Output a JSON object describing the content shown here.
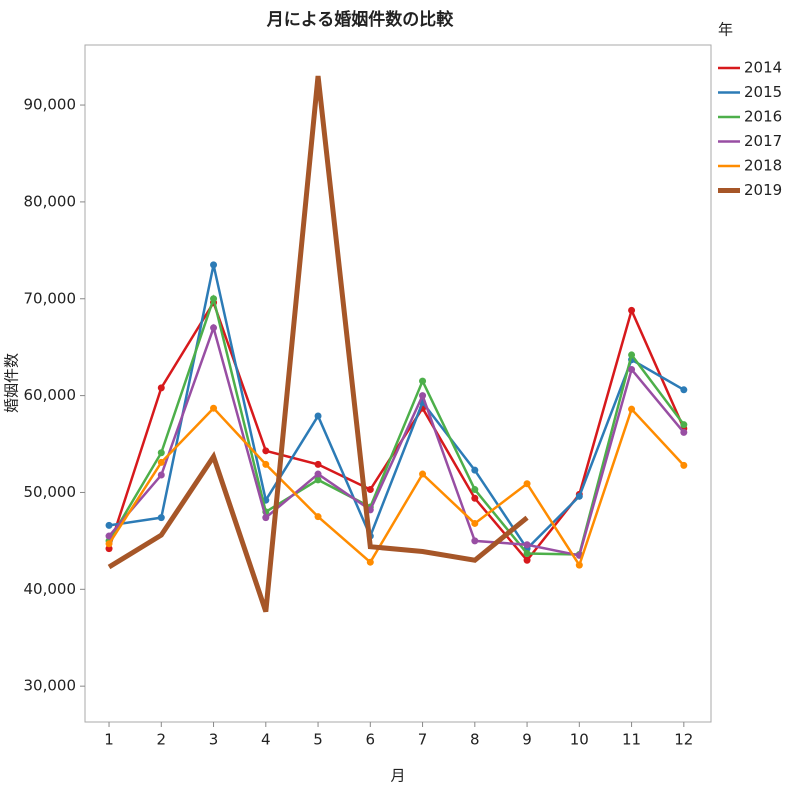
{
  "chart_data": {
    "type": "line",
    "title": "月による婚姻件数の比較",
    "x_label": "月",
    "y_label": "婚姻件数",
    "legend_title": "年",
    "legend": "right",
    "x": [
      1,
      2,
      3,
      4,
      5,
      6,
      7,
      8,
      9,
      10,
      11,
      12
    ],
    "xlim": [
      0.54,
      12.52
    ],
    "xticks": [
      1,
      2,
      3,
      4,
      5,
      6,
      7,
      8,
      9,
      10,
      11,
      12
    ],
    "ylim": [
      26300,
      96200
    ],
    "yticks": [
      {
        "value": 30000,
        "label": "30,000"
      },
      {
        "value": 40000,
        "label": "40,000"
      },
      {
        "value": 50000,
        "label": "50,000"
      },
      {
        "value": 60000,
        "label": "60,000"
      },
      {
        "value": 70000,
        "label": "70,000"
      },
      {
        "value": 80000,
        "label": "80,000"
      },
      {
        "value": 90000,
        "label": "90,000"
      }
    ],
    "series": [
      {
        "name": "2014",
        "color": "#d7191c",
        "width": 2.5,
        "markers": true,
        "values": [
          44200,
          60800,
          69600,
          54300,
          52900,
          50300,
          58700,
          49400,
          43000,
          49800,
          68800,
          56600
        ]
      },
      {
        "name": "2015",
        "color": "#2c7bb6",
        "width": 2.5,
        "markers": true,
        "values": [
          46600,
          47400,
          73500,
          49200,
          57900,
          45500,
          59300,
          52300,
          44200,
          49600,
          63700,
          60600
        ]
      },
      {
        "name": "2016",
        "color": "#4daf4a",
        "width": 2.5,
        "markers": true,
        "values": [
          45000,
          54100,
          70000,
          48000,
          51300,
          48500,
          61500,
          50300,
          43700,
          43600,
          64200,
          57000
        ]
      },
      {
        "name": "2017",
        "color": "#984ea3",
        "width": 2.5,
        "markers": true,
        "values": [
          45500,
          51800,
          67000,
          47400,
          51900,
          48200,
          60000,
          45000,
          44600,
          43500,
          62700,
          56200
        ]
      },
      {
        "name": "2018",
        "color": "#ff8c00",
        "width": 2.5,
        "markers": true,
        "values": [
          44700,
          53100,
          58700,
          52900,
          47500,
          42800,
          51900,
          46800,
          50900,
          42500,
          58600,
          52800
        ]
      },
      {
        "name": "2019",
        "color": "#a65628",
        "width": 5,
        "markers": false,
        "values": [
          42300,
          45600,
          53700,
          37700,
          93000,
          44400,
          43900,
          43000,
          47400,
          null,
          null,
          null
        ]
      }
    ]
  }
}
